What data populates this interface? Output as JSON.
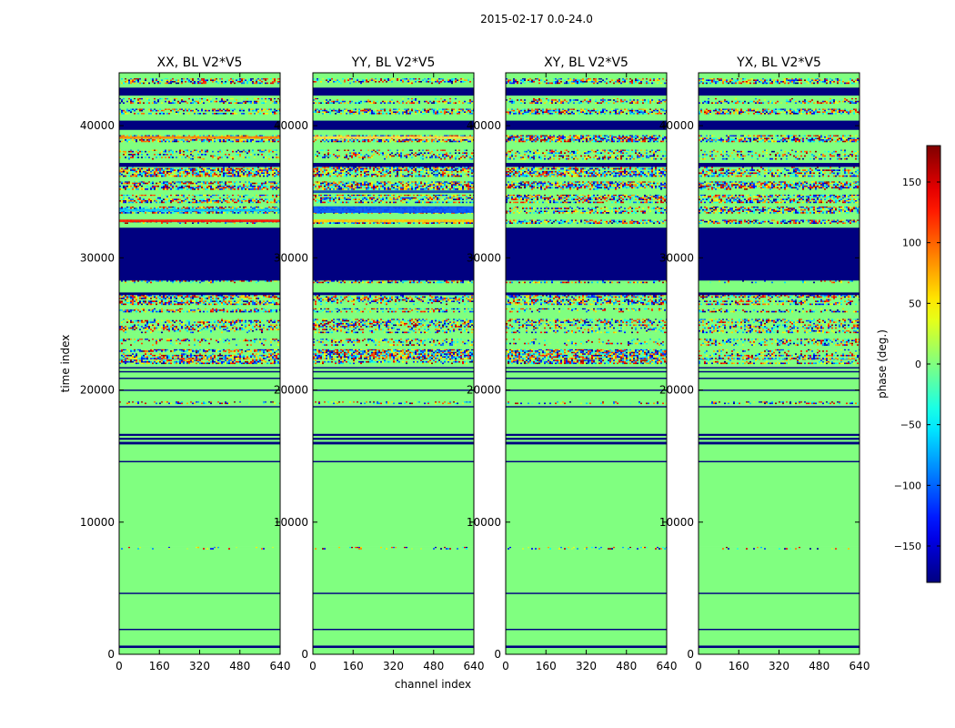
{
  "chart_data": {
    "type": "heatmap",
    "suptitle": "2015-02-17 0.0-24.0",
    "xlabel": "channel index",
    "ylabel": "time index",
    "xlim": [
      0,
      640
    ],
    "ylim": [
      0,
      44000
    ],
    "xticks": [
      "0",
      "160",
      "320",
      "480",
      "640"
    ],
    "yticks": [
      "0",
      "10000",
      "20000",
      "30000",
      "40000"
    ],
    "panels": [
      {
        "title": "XX, BL V2*V5"
      },
      {
        "title": "YY, BL V2*V5"
      },
      {
        "title": "XY, BL V2*V5"
      },
      {
        "title": "YX, BL V2*V5"
      }
    ],
    "colorbar": {
      "label": "phase (deg.)",
      "range": [
        -180,
        180
      ],
      "ticks": [
        "−150",
        "−100",
        "−50",
        "0",
        "50",
        "100",
        "150"
      ],
      "colormap": "jet"
    },
    "bands": [
      {
        "y0": 0,
        "y1": 500,
        "kind": "green"
      },
      {
        "y0": 500,
        "y1": 680,
        "kind": "navy"
      },
      {
        "y0": 680,
        "y1": 1850,
        "kind": "green"
      },
      {
        "y0": 1850,
        "y1": 1950,
        "kind": "navy"
      },
      {
        "y0": 1950,
        "y1": 4580,
        "kind": "green"
      },
      {
        "y0": 4580,
        "y1": 4680,
        "kind": "navy"
      },
      {
        "y0": 4680,
        "y1": 7950,
        "kind": "green"
      },
      {
        "y0": 7950,
        "y1": 8150,
        "kind": "noise",
        "density": 0.2
      },
      {
        "y0": 8150,
        "y1": 14550,
        "kind": "green"
      },
      {
        "y0": 14550,
        "y1": 14650,
        "kind": "navy"
      },
      {
        "y0": 14650,
        "y1": 15900,
        "kind": "green"
      },
      {
        "y0": 15900,
        "y1": 16100,
        "kind": "navy"
      },
      {
        "y0": 16100,
        "y1": 16250,
        "kind": "green"
      },
      {
        "y0": 16250,
        "y1": 16400,
        "kind": "navy"
      },
      {
        "y0": 16400,
        "y1": 16550,
        "kind": "green"
      },
      {
        "y0": 16550,
        "y1": 16700,
        "kind": "navy"
      },
      {
        "y0": 16700,
        "y1": 18700,
        "kind": "green"
      },
      {
        "y0": 18700,
        "y1": 18800,
        "kind": "navy"
      },
      {
        "y0": 18800,
        "y1": 18950,
        "kind": "green"
      },
      {
        "y0": 18950,
        "y1": 19150,
        "kind": "noise",
        "density": 0.4
      },
      {
        "y0": 19150,
        "y1": 19950,
        "kind": "green"
      },
      {
        "y0": 19950,
        "y1": 20050,
        "kind": "navy"
      },
      {
        "y0": 20050,
        "y1": 20850,
        "kind": "green"
      },
      {
        "y0": 20850,
        "y1": 20950,
        "kind": "navy"
      },
      {
        "y0": 20950,
        "y1": 21350,
        "kind": "green"
      },
      {
        "y0": 21350,
        "y1": 21450,
        "kind": "navy"
      },
      {
        "y0": 21450,
        "y1": 21650,
        "kind": "green"
      },
      {
        "y0": 21650,
        "y1": 21750,
        "kind": "navy"
      },
      {
        "y0": 21750,
        "y1": 22000,
        "kind": "green"
      },
      {
        "y0": 22000,
        "y1": 22400,
        "kind": "noise",
        "density": 0.8
      },
      {
        "y0": 22400,
        "y1": 23100,
        "kind": "noise",
        "density": 0.85
      },
      {
        "y0": 23100,
        "y1": 23400,
        "kind": "green"
      },
      {
        "y0": 23400,
        "y1": 23900,
        "kind": "noise",
        "density": 0.5
      },
      {
        "y0": 23900,
        "y1": 24300,
        "kind": "green"
      },
      {
        "y0": 24300,
        "y1": 25400,
        "kind": "noise",
        "density": 0.6
      },
      {
        "y0": 25400,
        "y1": 25900,
        "kind": "green"
      },
      {
        "y0": 25900,
        "y1": 26200,
        "kind": "noise",
        "density": 0.7
      },
      {
        "y0": 26200,
        "y1": 26500,
        "kind": "green"
      },
      {
        "y0": 26500,
        "y1": 27200,
        "kind": "noise",
        "density": 0.75
      },
      {
        "y0": 27200,
        "y1": 27400,
        "kind": "navy"
      },
      {
        "y0": 27400,
        "y1": 28100,
        "kind": "green"
      },
      {
        "y0": 28100,
        "y1": 28300,
        "kind": "noise",
        "density": 0.6
      },
      {
        "y0": 28300,
        "y1": 32300,
        "kind": "navy"
      },
      {
        "y0": 32300,
        "y1": 32600,
        "kind": "green"
      },
      {
        "y0": 32600,
        "y1": 32900,
        "kind": "noise",
        "density": 0.7
      },
      {
        "y0": 32900,
        "y1": 33400,
        "kind": "green"
      },
      {
        "y0": 33400,
        "y1": 33900,
        "kind": "noise",
        "density": 0.7
      },
      {
        "y0": 33900,
        "y1": 34200,
        "kind": "green"
      },
      {
        "y0": 34200,
        "y1": 34800,
        "kind": "noise",
        "density": 0.8
      },
      {
        "y0": 34800,
        "y1": 35200,
        "kind": "green"
      },
      {
        "y0": 35200,
        "y1": 35800,
        "kind": "noise",
        "density": 0.8
      },
      {
        "y0": 35800,
        "y1": 36200,
        "kind": "green"
      },
      {
        "y0": 36200,
        "y1": 36900,
        "kind": "noise",
        "density": 0.85
      },
      {
        "y0": 36900,
        "y1": 37200,
        "kind": "navy"
      },
      {
        "y0": 37200,
        "y1": 37500,
        "kind": "green"
      },
      {
        "y0": 37500,
        "y1": 38200,
        "kind": "noise",
        "density": 0.5
      },
      {
        "y0": 38200,
        "y1": 38800,
        "kind": "green"
      },
      {
        "y0": 38800,
        "y1": 39300,
        "kind": "noise",
        "density": 0.8
      },
      {
        "y0": 39300,
        "y1": 39700,
        "kind": "green"
      },
      {
        "y0": 39700,
        "y1": 40400,
        "kind": "navy"
      },
      {
        "y0": 40400,
        "y1": 40900,
        "kind": "green"
      },
      {
        "y0": 40900,
        "y1": 41300,
        "kind": "noise",
        "density": 0.7
      },
      {
        "y0": 41300,
        "y1": 41700,
        "kind": "green"
      },
      {
        "y0": 41700,
        "y1": 42100,
        "kind": "noise",
        "density": 0.6
      },
      {
        "y0": 42100,
        "y1": 42300,
        "kind": "green"
      },
      {
        "y0": 42300,
        "y1": 42900,
        "kind": "navy"
      },
      {
        "y0": 42900,
        "y1": 43200,
        "kind": "green"
      },
      {
        "y0": 43200,
        "y1": 43600,
        "kind": "noise",
        "density": 0.6
      },
      {
        "y0": 43600,
        "y1": 44000,
        "kind": "green"
      }
    ],
    "panel_overrides": [
      {
        "panel": 0,
        "y0": 32700,
        "y1": 32900,
        "kind": "stripe",
        "color": "#ff1a00"
      },
      {
        "panel": 0,
        "y0": 33500,
        "y1": 33700,
        "kind": "stripe",
        "color": "#00c8ff"
      },
      {
        "panel": 0,
        "y0": 39000,
        "y1": 39200,
        "kind": "stripe",
        "color": "#ff8c00"
      },
      {
        "panel": 1,
        "y0": 33400,
        "y1": 33900,
        "kind": "stripe",
        "color": "#0050ff"
      },
      {
        "panel": 1,
        "y0": 32700,
        "y1": 32900,
        "kind": "stripe",
        "color": "#ffd000"
      },
      {
        "panel": 1,
        "y0": 34900,
        "y1": 35100,
        "kind": "stripe",
        "color": "#1040c0"
      },
      {
        "panel": 1,
        "y0": 39000,
        "y1": 39200,
        "kind": "stripe",
        "color": "#ffe040"
      }
    ]
  }
}
